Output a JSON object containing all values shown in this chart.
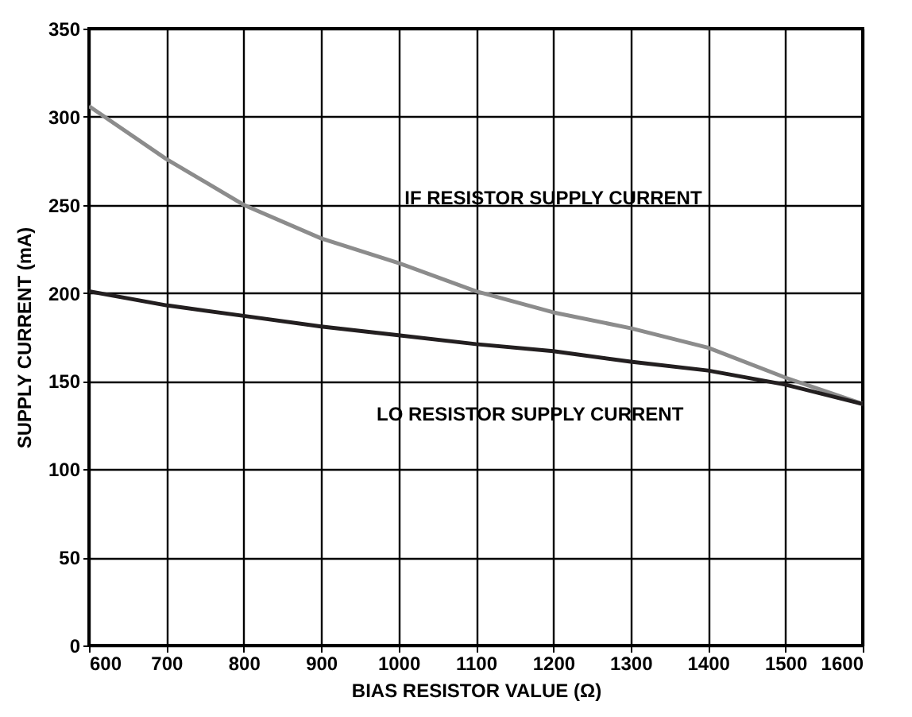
{
  "chart_data": {
    "type": "line",
    "xlabel": "BIAS RESISTOR VALUE (Ω)",
    "ylabel": "SUPPLY CURRENT (mA)",
    "x": [
      600,
      700,
      800,
      900,
      1000,
      1100,
      1200,
      1300,
      1400,
      1500,
      1600
    ],
    "series": [
      {
        "name": "IF RESISTOR SUPPLY CURRENT",
        "color": "#8c8c8c",
        "values": [
          306,
          276,
          250,
          231,
          217,
          201,
          189,
          180,
          169,
          152,
          137
        ]
      },
      {
        "name": "LO RESISTOR SUPPLY CURRENT",
        "color": "#231f20",
        "values": [
          201,
          193,
          187,
          181,
          176,
          171,
          167,
          161,
          156,
          148,
          137
        ]
      }
    ],
    "xlim": [
      600,
      1600
    ],
    "xticks": [
      600,
      700,
      800,
      900,
      1000,
      1100,
      1200,
      1300,
      1400,
      1500,
      1600
    ],
    "ylim": [
      0,
      350
    ],
    "yticks": [
      0,
      50,
      100,
      150,
      200,
      250,
      300,
      350
    ],
    "grid": true,
    "line_style": "solid",
    "marker": "none",
    "legend": false
  }
}
